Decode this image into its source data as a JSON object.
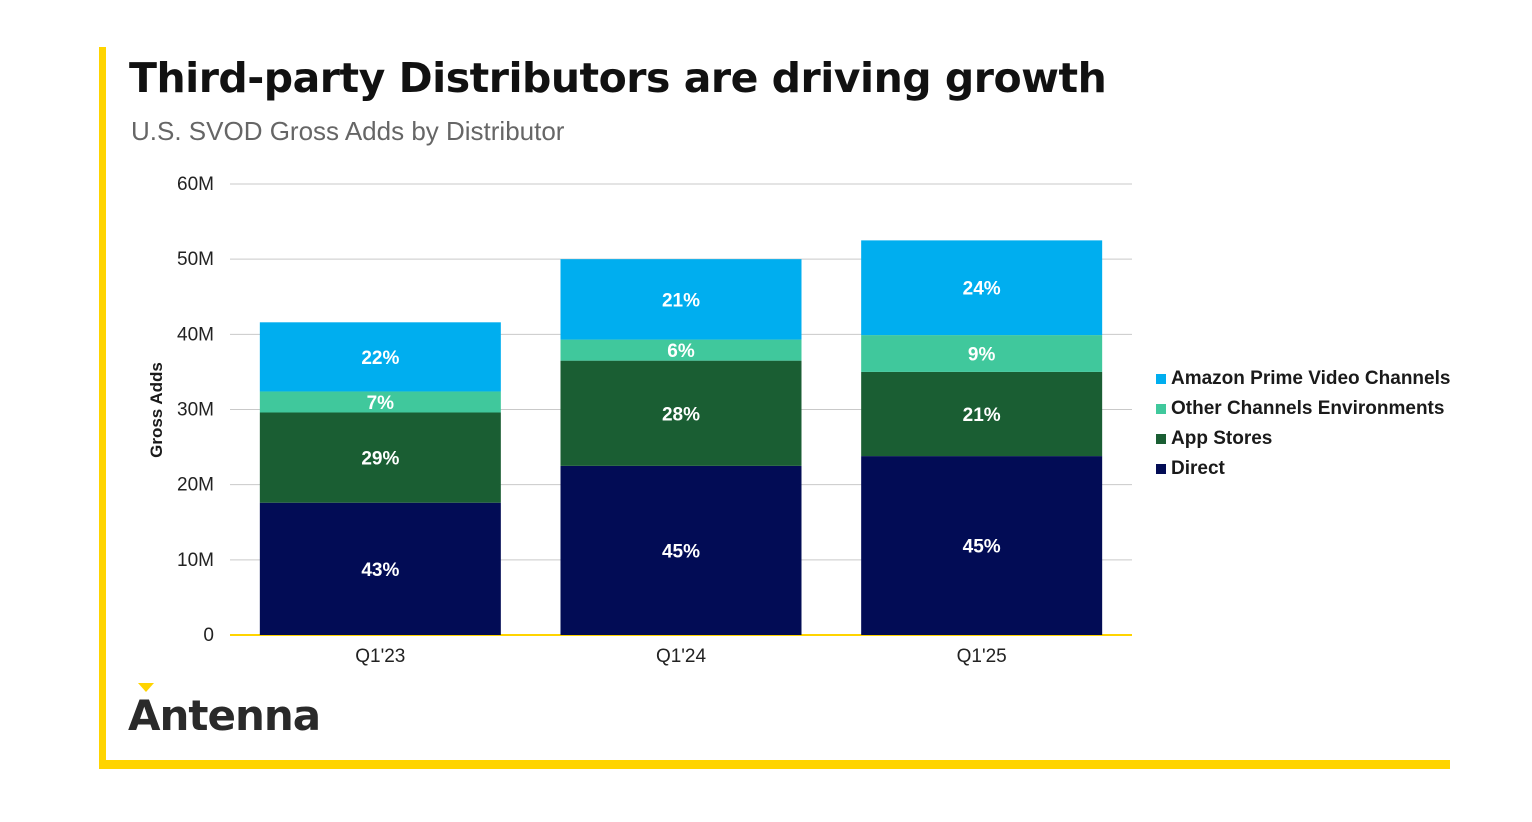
{
  "header": {
    "title": "Third-party Distributors are driving growth",
    "subtitle": "U.S. SVOD Gross Adds by Distributor"
  },
  "brand": {
    "name": "Antenna",
    "accent_color": "#ffd400"
  },
  "chart_data": {
    "type": "bar",
    "stacked": true,
    "categories": [
      "Q1'23",
      "Q1'24",
      "Q1'25"
    ],
    "ylabel": "Gross Adds",
    "xlabel": "",
    "ylim": [
      0,
      60000000
    ],
    "yticks": [
      {
        "value": 0,
        "label": "0"
      },
      {
        "value": 10000000,
        "label": "10M"
      },
      {
        "value": 20000000,
        "label": "20M"
      },
      {
        "value": 30000000,
        "label": "30M"
      },
      {
        "value": 40000000,
        "label": "40M"
      },
      {
        "value": 50000000,
        "label": "50M"
      },
      {
        "value": 60000000,
        "label": "60M"
      }
    ],
    "grid": true,
    "legend": "right",
    "series": [
      {
        "name": "Direct",
        "color": "#020c55",
        "values": [
          17600000,
          22500000,
          23800000
        ],
        "labels": [
          "43%",
          "45%",
          "45%"
        ]
      },
      {
        "name": "App Stores",
        "color": "#1a5e33",
        "values": [
          12000000,
          14000000,
          11200000
        ],
        "labels": [
          "29%",
          "28%",
          "21%"
        ]
      },
      {
        "name": "Other Channels Environments",
        "color": "#40c89c",
        "values": [
          2800000,
          2800000,
          4900000
        ],
        "labels": [
          "7%",
          "6%",
          "9%"
        ]
      },
      {
        "name": "Amazon Prime Video Channels",
        "color": "#00aeef",
        "values": [
          9200000,
          10700000,
          12600000
        ],
        "labels": [
          "22%",
          "21%",
          "24%"
        ]
      }
    ]
  }
}
